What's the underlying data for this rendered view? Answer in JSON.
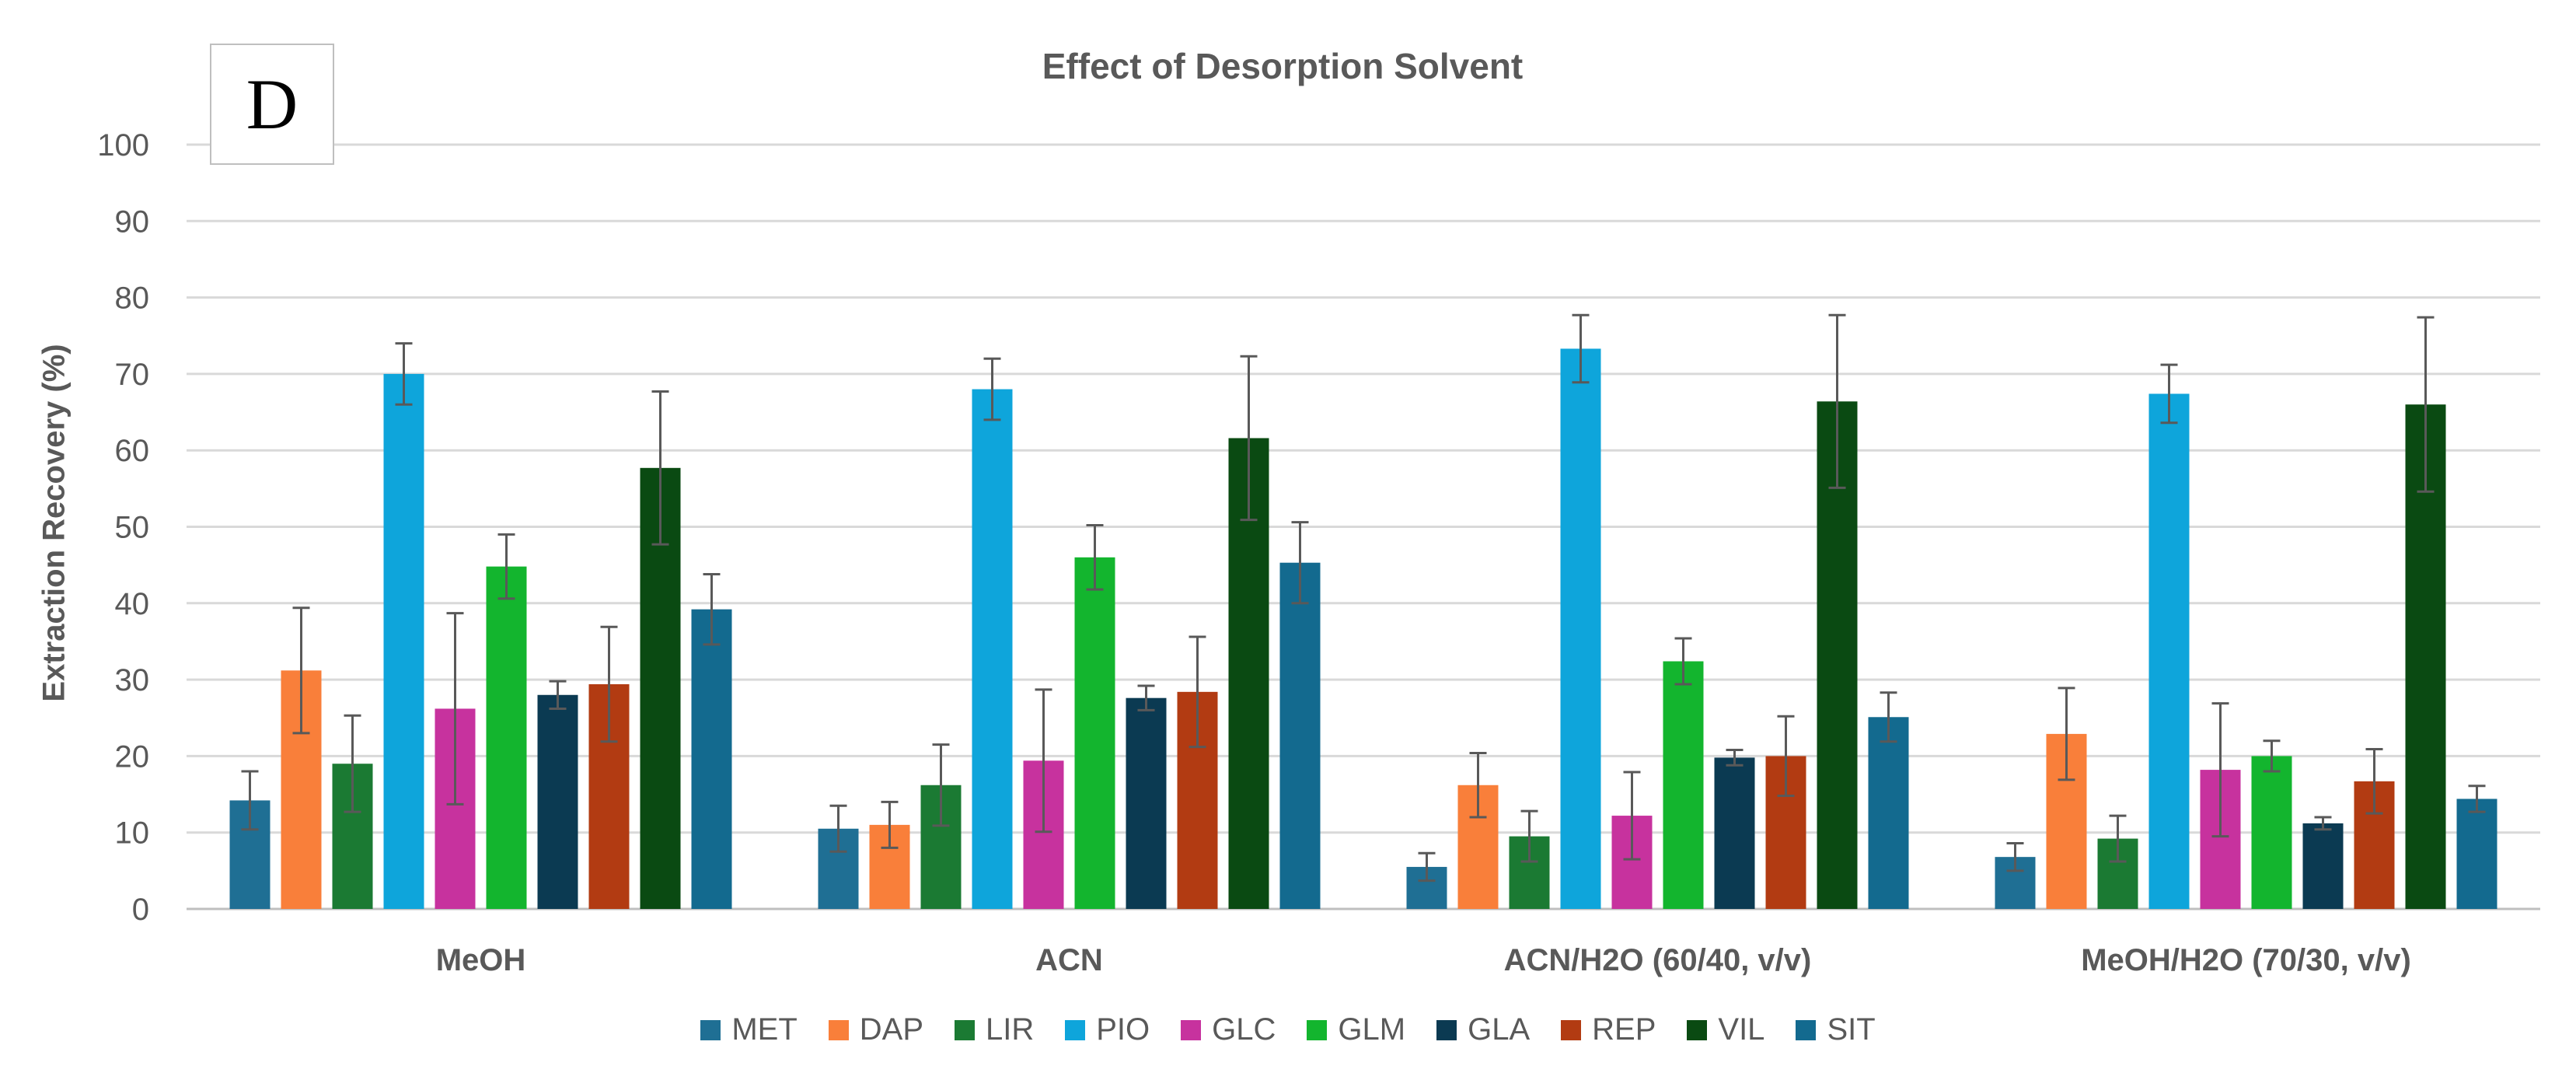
{
  "panel_label": "D",
  "chart_data": {
    "type": "bar",
    "title": "Effect of Desorption Solvent",
    "xlabel": "",
    "ylabel": "Extraction Recovery (%)",
    "ylim": [
      0,
      100
    ],
    "yticks": [
      0,
      10,
      20,
      30,
      40,
      50,
      60,
      70,
      80,
      90,
      100
    ],
    "grid": true,
    "legend_position": "bottom",
    "categories": [
      "MeOH",
      "ACN",
      "ACN/H2O (60/40, v/v)",
      "MeOH/H2O (70/30, v/v)"
    ],
    "series": [
      {
        "name": "MET",
        "color": "#1f6f94",
        "values": [
          14.2,
          10.5,
          5.5,
          6.8
        ],
        "errors": [
          3.8,
          3.0,
          1.8,
          1.8
        ]
      },
      {
        "name": "DAP",
        "color": "#f97f3a",
        "values": [
          31.2,
          11.0,
          16.2,
          22.9
        ],
        "errors": [
          8.2,
          3.0,
          4.2,
          6.0
        ]
      },
      {
        "name": "LIR",
        "color": "#1b7a33",
        "values": [
          19.0,
          16.2,
          9.5,
          9.2
        ],
        "errors": [
          6.3,
          5.3,
          3.3,
          3.0
        ]
      },
      {
        "name": "PIO",
        "color": "#0ea5db",
        "values": [
          70.0,
          68.0,
          73.3,
          67.4
        ],
        "errors": [
          4.0,
          4.0,
          4.4,
          3.8
        ]
      },
      {
        "name": "GLC",
        "color": "#c7329e",
        "values": [
          26.2,
          19.4,
          12.2,
          18.2
        ],
        "errors": [
          12.5,
          9.3,
          5.7,
          8.7
        ]
      },
      {
        "name": "GLM",
        "color": "#13b52e",
        "values": [
          44.8,
          46.0,
          32.4,
          20.0
        ],
        "errors": [
          4.2,
          4.2,
          3.0,
          2.0
        ]
      },
      {
        "name": "GLA",
        "color": "#0b3a52",
        "values": [
          28.0,
          27.6,
          19.8,
          11.2
        ],
        "errors": [
          1.8,
          1.6,
          1.0,
          0.8
        ]
      },
      {
        "name": "REP",
        "color": "#b23b12",
        "values": [
          29.4,
          28.4,
          20.0,
          16.7
        ],
        "errors": [
          7.5,
          7.2,
          5.2,
          4.2
        ]
      },
      {
        "name": "VIL",
        "color": "#0a4a12",
        "values": [
          57.7,
          61.6,
          66.4,
          66.0
        ],
        "errors": [
          10.0,
          10.7,
          11.3,
          11.4
        ]
      },
      {
        "name": "SIT",
        "color": "#136a8f",
        "values": [
          39.2,
          45.3,
          25.1,
          14.4
        ],
        "errors": [
          4.6,
          5.3,
          3.2,
          1.7
        ]
      }
    ]
  }
}
